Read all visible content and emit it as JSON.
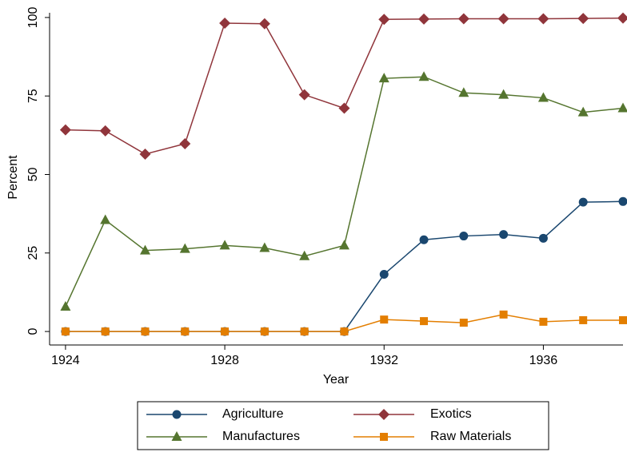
{
  "chart_data": {
    "type": "line",
    "x_label": "Year",
    "y_label": "Percent",
    "x": [
      1924,
      1925,
      1926,
      1927,
      1928,
      1929,
      1930,
      1931,
      1932,
      1933,
      1934,
      1935,
      1936,
      1937,
      1938
    ],
    "series": [
      {
        "name": "Agriculture",
        "color": "#1a476f",
        "marker": "circle",
        "values": [
          0,
          0,
          0,
          0,
          0,
          0,
          0,
          0,
          18.2,
          29.2,
          30.4,
          30.9,
          29.7,
          41.2,
          41.4
        ]
      },
      {
        "name": "Exotics",
        "color": "#90353b",
        "marker": "diamond",
        "values": [
          64.2,
          63.9,
          56.5,
          59.8,
          98.2,
          98.0,
          75.4,
          71.1,
          99.4,
          99.5,
          99.6,
          99.6,
          99.6,
          99.7,
          99.8
        ]
      },
      {
        "name": "Manufactures",
        "color": "#55752f",
        "marker": "triangle",
        "values": [
          7.9,
          35.5,
          25.8,
          26.3,
          27.4,
          26.6,
          24.0,
          27.4,
          80.6,
          81.1,
          76.0,
          75.4,
          74.4,
          69.8,
          71.1
        ]
      },
      {
        "name": "Raw Materials",
        "color": "#e37e00",
        "marker": "square",
        "values": [
          0,
          0,
          0,
          0,
          0,
          0,
          0,
          0,
          3.8,
          3.3,
          2.8,
          5.4,
          3.1,
          3.6,
          3.6
        ]
      }
    ],
    "xlim": [
      1923.6,
      1938
    ],
    "xticks": [
      1924,
      1928,
      1932,
      1936
    ],
    "ylim": [
      -4.3,
      101.5
    ],
    "yticks": [
      0,
      25,
      50,
      75,
      100
    ],
    "legend": "bottom"
  }
}
